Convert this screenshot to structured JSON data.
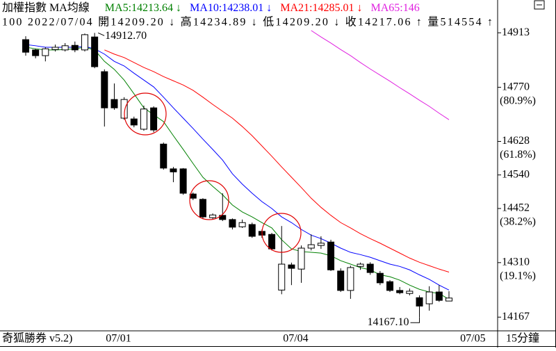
{
  "header": {
    "title": "加權指數 MA均線",
    "quote": "100 2022/07/04 開14209.20 ↓ 高14234.89 ↓ 低14209.20 ↓ 收14217.06 ↑ 量514554 ↑"
  },
  "footer": {
    "software": "奇狐勝券 v5.2)",
    "period": "15分鐘"
  },
  "chart_data": {
    "type": "candlestick",
    "categories": [
      null,
      null,
      null,
      null,
      null,
      null,
      null,
      null,
      "07/01",
      null,
      null,
      null,
      null,
      null,
      null,
      null,
      null,
      null,
      null,
      null,
      null,
      null,
      null,
      null,
      null,
      null,
      "07/04",
      null,
      null,
      null,
      null,
      null,
      null,
      null,
      null,
      null,
      null,
      null,
      null,
      null,
      null,
      null,
      null,
      null,
      "07/05"
    ],
    "open": [
      14895,
      14868,
      14853,
      14869,
      14868,
      14880,
      14868,
      14902,
      14811,
      14738,
      14689,
      14687,
      14660,
      14716,
      14621,
      14556,
      14556,
      14490,
      14476,
      14428,
      14434,
      14423,
      14404,
      14410,
      14392,
      14384,
      14238,
      14304,
      14293,
      14348,
      14355,
      14364,
      14288,
      14237,
      14300,
      14306,
      14282,
      14260,
      14237,
      14229,
      14218,
      14202,
      14233,
      14209.2,
      null
    ],
    "high": [
      14904,
      14871,
      14875,
      14882,
      14886,
      14890,
      14911,
      14912.7,
      14817,
      14780,
      14744,
      14693,
      14722,
      14720,
      14625,
      14561,
      14558,
      14494,
      14479,
      14439,
      14492,
      14426,
      14423,
      14415,
      14397,
      14388,
      14406,
      14310,
      14355,
      14384,
      14379,
      14370,
      14295,
      14302,
      14310,
      14311,
      14288,
      14264,
      14246,
      14242,
      14224,
      14248,
      14251,
      14234.89,
      null
    ],
    "low": [
      14853,
      14846,
      14838,
      14864,
      14864,
      14862,
      14864,
      14820,
      14667,
      14711,
      14685,
      14665,
      14656,
      14652,
      14554,
      14521,
      14488,
      14474,
      14424,
      14424,
      14419,
      14397,
      14401,
      14375,
      14375,
      14342,
      14227,
      14251,
      14257,
      14342,
      14346,
      14288,
      14233,
      14215,
      14291,
      14278,
      14251,
      14233,
      14227,
      14224,
      14167.1,
      14184,
      14207,
      14209.2,
      null
    ],
    "close": [
      14862,
      14853,
      14871,
      14875,
      14879,
      14868,
      14908,
      14824,
      14716,
      14716,
      14738,
      14671,
      14713,
      14658,
      14558,
      14548,
      14492,
      14479,
      14430,
      14435,
      14423,
      14403,
      14415,
      14379,
      14382,
      14346,
      14306,
      14295,
      14348,
      14357,
      14361,
      14291,
      14237,
      14297,
      14306,
      14284,
      14257,
      14237,
      14231,
      14235,
      14196,
      14233,
      14211,
      14217.06,
      null
    ],
    "up_color": "#ffffff",
    "down_color": "#000000",
    "series": [
      {
        "label": "MA5:14213.64 ↓",
        "color": "#008000",
        "values": [
          14875,
          14871,
          14868,
          14868,
          14869,
          14871,
          14875,
          14868,
          14838,
          14817,
          14789,
          14753,
          14716,
          14698,
          14680,
          14643,
          14607,
          14570,
          14534,
          14510,
          14488,
          14461,
          14443,
          14430,
          14415,
          14401,
          14370,
          14346,
          14339,
          14337,
          14335,
          14328,
          14315,
          14306,
          14297,
          14291,
          14278,
          14273,
          14264,
          14251,
          14240,
          14233,
          14229,
          14213.64,
          null
        ]
      },
      {
        "label": "MA10:14238.01 ↓",
        "color": "#0000ff",
        "values": [
          14882,
          14879,
          14875,
          14875,
          14875,
          14875,
          14877,
          14871,
          14857,
          14838,
          14826,
          14807,
          14789,
          14771,
          14744,
          14716,
          14689,
          14662,
          14634,
          14607,
          14579,
          14543,
          14516,
          14492,
          14470,
          14452,
          14430,
          14415,
          14397,
          14382,
          14373,
          14361,
          14348,
          14337,
          14331,
          14324,
          14315,
          14306,
          14300,
          14291,
          14278,
          14266,
          14251,
          14238.01,
          null
        ]
      },
      {
        "label": "MA21:14285.01 ↓",
        "color": "#ff0000",
        "values": [
          null,
          null,
          null,
          null,
          null,
          null,
          null,
          null,
          14868,
          14857,
          14848,
          14835,
          14822,
          14811,
          14798,
          14787,
          14776,
          14762,
          14744,
          14725,
          14707,
          14689,
          14667,
          14643,
          14616,
          14589,
          14561,
          14534,
          14507,
          14479,
          14455,
          14434,
          14415,
          14401,
          14386,
          14373,
          14361,
          14348,
          14335,
          14322,
          14311,
          14302,
          14293,
          14285.01,
          null
        ]
      },
      {
        "label": "MA65:146",
        "color": "#e020e0",
        "values": [
          null,
          null,
          null,
          null,
          null,
          null,
          null,
          null,
          null,
          null,
          null,
          null,
          null,
          null,
          null,
          null,
          null,
          null,
          null,
          null,
          null,
          null,
          null,
          null,
          null,
          null,
          null,
          null,
          null,
          14919,
          14902,
          14886,
          14869,
          14853,
          14835,
          14818,
          14802,
          14786,
          14769,
          14753,
          14736,
          14720,
          14702,
          14685,
          null
        ]
      }
    ],
    "ylim": [
      14131,
      14999
    ],
    "yticks": [
      14913,
      14770,
      14628,
      14540,
      14452,
      14310,
      14167
    ],
    "retracement": [
      {
        "value": 14770,
        "label": "(80.9%)"
      },
      {
        "value": 14628,
        "label": "(61.8%)"
      },
      {
        "value": 14452,
        "label": "(38.2%)"
      },
      {
        "value": 14310,
        "label": "(19.1%)"
      }
    ],
    "annotations": [
      {
        "value": 14912.7,
        "label": "14912.70"
      },
      {
        "value": 14167.1,
        "label": "14167.10"
      }
    ]
  }
}
